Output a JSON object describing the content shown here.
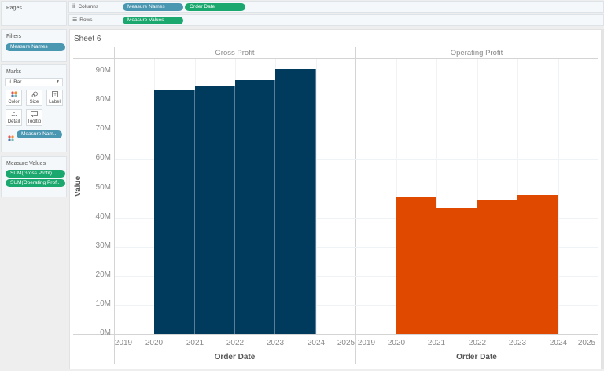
{
  "shelves": {
    "pages_label": "Pages",
    "columns_label": "Columns",
    "columns_pills": [
      "Measure Names",
      "Order Date"
    ],
    "rows_label": "Rows",
    "rows_pills": [
      "Measure Values"
    ]
  },
  "filters": {
    "title": "Filters",
    "pills": [
      "Measure Names"
    ]
  },
  "marks": {
    "title": "Marks",
    "type": "Bar",
    "buttons": [
      {
        "label": "Color",
        "icon": "color-dots-icon"
      },
      {
        "label": "Size",
        "icon": "size-icon"
      },
      {
        "label": "Label",
        "icon": "label-icon"
      },
      {
        "label": "Detail",
        "icon": "detail-icon"
      },
      {
        "label": "Tooltip",
        "icon": "tooltip-icon"
      }
    ],
    "color_pill": "Measure Nam.."
  },
  "measure_values": {
    "title": "Measure Values",
    "pills": [
      "SUM(Gross Profit)",
      "SUM(Operating Prof.."
    ]
  },
  "sheet": {
    "title": "Sheet 6"
  },
  "colors": {
    "gross_profit": "#003a5d",
    "operating_profit": "#e04a00",
    "pill_blue": "#4a97b2",
    "pill_green": "#1ba86e"
  },
  "chart_data": {
    "type": "bar",
    "title": "Sheet 6",
    "xlabel": "Order Date",
    "ylabel": "Value",
    "ylim": [
      0,
      92000000
    ],
    "y_ticks": [
      "0M",
      "10M",
      "20M",
      "30M",
      "40M",
      "50M",
      "60M",
      "70M",
      "80M",
      "90M"
    ],
    "x_ticks": [
      "2019",
      "2020",
      "2021",
      "2022",
      "2023",
      "2024",
      "2025"
    ],
    "panes": [
      "Gross Profit",
      "Operating Profit"
    ],
    "categories": [
      "2020",
      "2021",
      "2022",
      "2023"
    ],
    "series": [
      {
        "name": "Gross Profit",
        "color": "#003a5d",
        "values": [
          83800000,
          84900000,
          87000000,
          90800000
        ]
      },
      {
        "name": "Operating Profit",
        "color": "#e04a00",
        "values": [
          47300000,
          43500000,
          45900000,
          47600000
        ]
      }
    ],
    "grid": true,
    "legend": "none"
  }
}
